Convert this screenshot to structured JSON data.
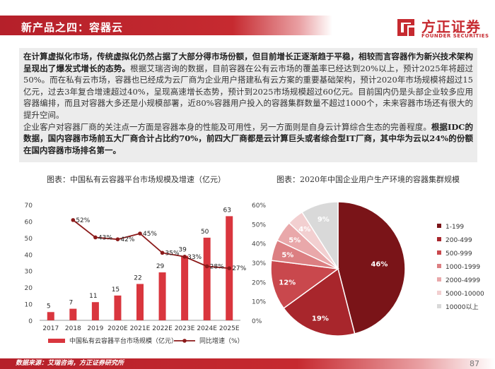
{
  "header": {
    "title": "新产品之四：容器云",
    "logo_cn": "方正证券",
    "logo_en": "FOUNDER SECURITIES"
  },
  "body": {
    "p1_bold": "在计算虚拟化市场，传统虚拟化仍然占据了大部分得市场份额，但目前增长正逐渐趋于平稳，相较而言容器作为新兴技术架构呈现出了爆发式增长的态势。",
    "p1_rest": "根据艾瑞咨询的数据，目前容器在公有云市场的覆盖率已经达到20%以上，预计2025年将超过50%。而在私有云市场，容器也已经成为云厂商为企业用户搭建私有云方案的重要基础架构，预计2020年市场规模将超过15亿元，过去3年复合增速超过40%，呈现高速增长态势，预计到2025市场规模超过60亿元。目前国内仍是头部企业较多应用容器编排，而且对容器大多还是小规模部署，近80%容器用户投入的容器集群数量不超过1000个，未来容器市场还有很大的提升空间。",
    "p2_plain": "企业客户对容器厂商的关注点一方面是容器本身的性能及可用性，另一方面则是自身云计算综合生态的完善程度。",
    "p2_bold": "根据IDC的数据，国内容器市场前五大厂商合计占比约70%，前四大厂商都是云计算巨头或者综合型IT厂商，其中华为云以24%的份额在国内容器市场排名第一。"
  },
  "footer": {
    "source": "数据来源：艾瑞咨询，方正证券研究所",
    "page": "87"
  },
  "colors": {
    "brand": "#c62a30",
    "bar": "#d9363e",
    "line": "#8b1a1a"
  },
  "chart_data": [
    {
      "type": "bar",
      "title": "图表：中国私有云容器平台市场规模及增速（亿元）",
      "categories": [
        "2017",
        "2018",
        "2019",
        "2020E",
        "2021E",
        "2022E",
        "2023E",
        "2024E",
        "2025E"
      ],
      "series": [
        {
          "name": "中国私有云容器平台市场规模（亿元）",
          "type": "bar",
          "axis": "left",
          "values": [
            5,
            7,
            11,
            15,
            22,
            29,
            39,
            50,
            63
          ]
        },
        {
          "name": "同比增速（%）",
          "type": "line",
          "axis": "right",
          "values": [
            null,
            52,
            43,
            42,
            45,
            35,
            33,
            28,
            27
          ],
          "labels": [
            "",
            "52%",
            "43%",
            "42%",
            "45%",
            "35%",
            "33%",
            "28%",
            "27%"
          ]
        }
      ],
      "yticks_left": [
        "0",
        "10",
        "20",
        "30",
        "40",
        "50",
        "60",
        "70"
      ],
      "yticks_right": [
        "0%",
        "10%",
        "20%",
        "30%",
        "40%",
        "50%",
        "60%"
      ],
      "ylim": [
        0,
        70
      ],
      "ylim_right": [
        0,
        60
      ]
    },
    {
      "type": "pie",
      "title": "图表：2020年中国企业用户生产环境的容器集群规模",
      "categories": [
        "1-199",
        "200-499",
        "500-999",
        "1000-1999",
        "2000-4999",
        "5000-10000",
        "10000以上"
      ],
      "values": [
        46,
        19,
        12,
        5,
        5,
        4,
        9
      ],
      "labels": [
        "46%",
        "19%",
        "12%",
        "5%",
        "5%",
        "4%",
        "9%"
      ],
      "colors": [
        "#7a1418",
        "#a8262c",
        "#c9484d",
        "#dc7f82",
        "#e9a8aa",
        "#f2cfd0",
        "#d9d9d9"
      ]
    }
  ]
}
